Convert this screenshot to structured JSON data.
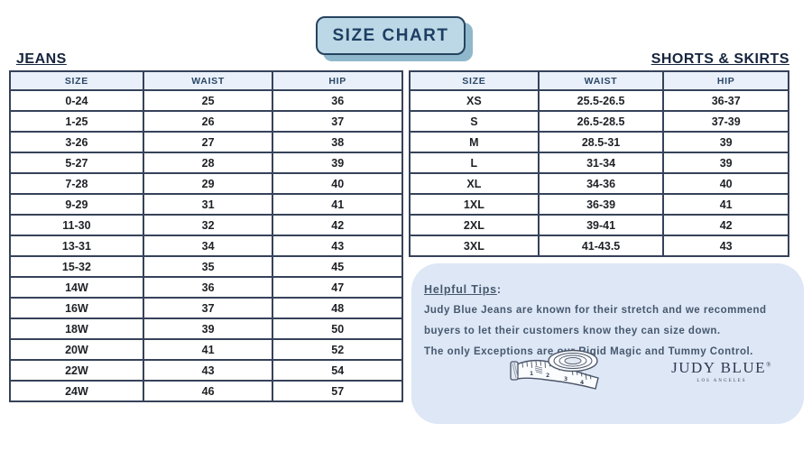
{
  "title": "SIZE CHART",
  "jeans": {
    "heading": "JEANS",
    "columns": [
      "SIZE",
      "WAIST",
      "HIP"
    ],
    "rows": [
      [
        "0-24",
        "25",
        "36"
      ],
      [
        "1-25",
        "26",
        "37"
      ],
      [
        "3-26",
        "27",
        "38"
      ],
      [
        "5-27",
        "28",
        "39"
      ],
      [
        "7-28",
        "29",
        "40"
      ],
      [
        "9-29",
        "31",
        "41"
      ],
      [
        "11-30",
        "32",
        "42"
      ],
      [
        "13-31",
        "34",
        "43"
      ],
      [
        "15-32",
        "35",
        "45"
      ],
      [
        "14W",
        "36",
        "47"
      ],
      [
        "16W",
        "37",
        "48"
      ],
      [
        "18W",
        "39",
        "50"
      ],
      [
        "20W",
        "41",
        "52"
      ],
      [
        "22W",
        "43",
        "54"
      ],
      [
        "24W",
        "46",
        "57"
      ]
    ]
  },
  "shorts_skirts": {
    "heading": "SHORTS & SKIRTS",
    "columns": [
      "SIZE",
      "WAIST",
      "HIP"
    ],
    "rows": [
      [
        "XS",
        "25.5-26.5",
        "36-37"
      ],
      [
        "S",
        "26.5-28.5",
        "37-39"
      ],
      [
        "M",
        "28.5-31",
        "39"
      ],
      [
        "L",
        "31-34",
        "39"
      ],
      [
        "XL",
        "34-36",
        "40"
      ],
      [
        "1XL",
        "36-39",
        "41"
      ],
      [
        "2XL",
        "39-41",
        "42"
      ],
      [
        "3XL",
        "41-43.5",
        "43"
      ]
    ]
  },
  "tips": {
    "heading": "Helpful Tips",
    "colon": ":",
    "lines": [
      "Judy Blue Jeans are known for their stretch and we recommend",
      "buyers to let their customers know they can size down.",
      "The only Exceptions are our Rigid Magic and Tummy Control."
    ]
  },
  "brand": {
    "name": "JUDY BLUE",
    "registered": "®",
    "tagline": "LOS ANGELES"
  },
  "icons": {
    "tape_measure": "tape-measure-illustration"
  },
  "colors": {
    "banner_fill": "#bcd8e6",
    "banner_shadow": "#8fb8cc",
    "banner_border": "#27435f",
    "navy_text": "#1d3f63",
    "table_border": "#36425a",
    "table_header_bg": "#e9f0fa",
    "tips_panel_bg": "#dde7f6",
    "tips_text": "#46586e"
  }
}
